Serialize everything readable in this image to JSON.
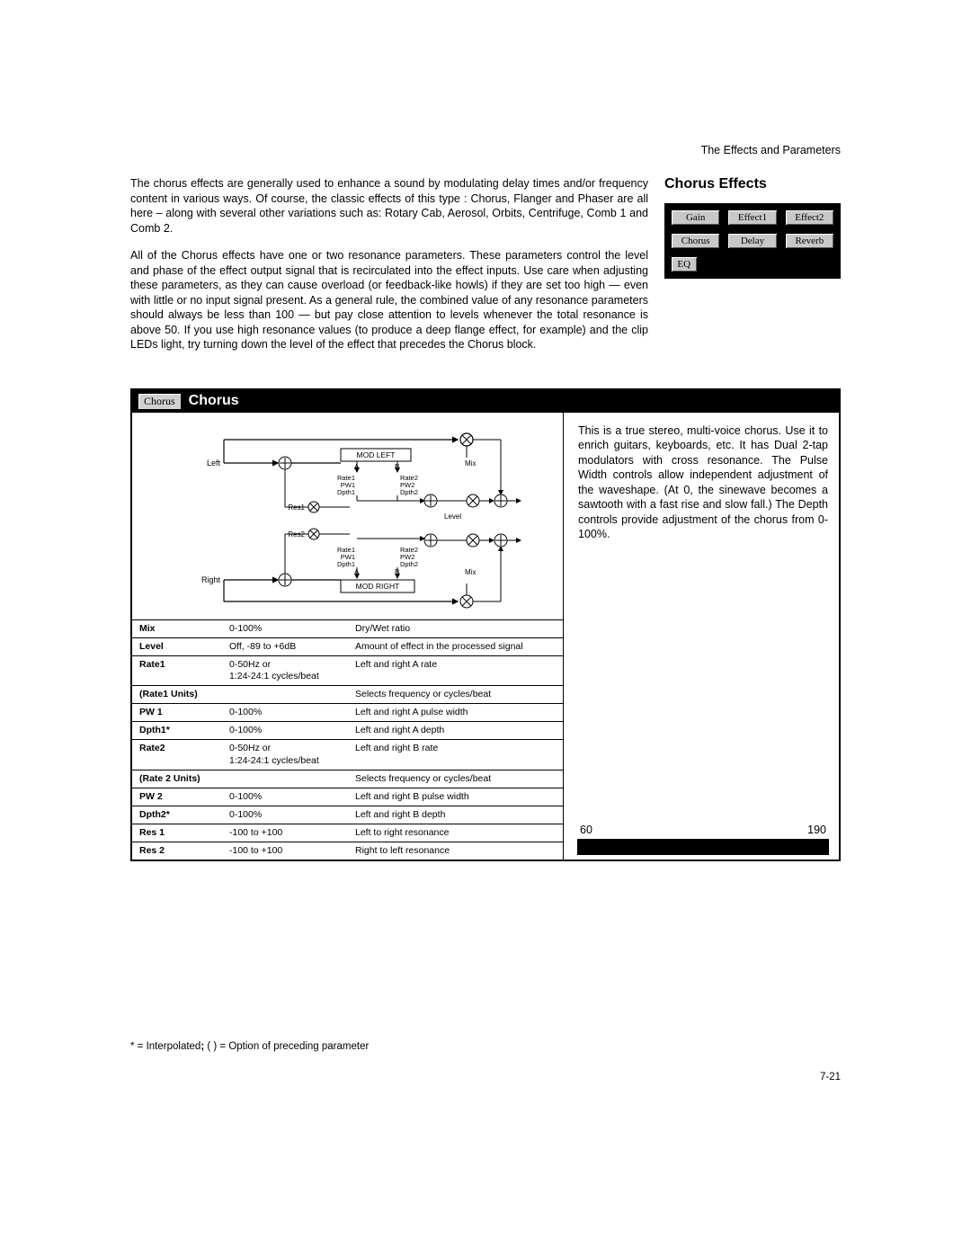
{
  "header": "The Effects and Parameters",
  "intro": {
    "p1": "The chorus effects are generally used to enhance a sound by modulating delay times and/or frequency content in various ways. Of course, the classic effects of this type : Chorus, Flanger and  Phaser are all here – along with several other variations such as: Rotary Cab, Aerosol, Orbits, Centrifuge, Comb 1 and Comb 2.",
    "p2": "All of the Chorus effects have one or two resonance parameters. These parameters control the level and phase of the effect output signal that is recirculated into the effect inputs. Use care when adjusting these parameters, as they can cause overload (or feedback-like howls) if they are set too high — even with little or no input signal present. As a general rule, the combined value of any resonance parameters should always be less than 100 — but pay close attention to levels whenever the total resonance is above 50. If you use high resonance values (to produce a deep flange effect, for example) and the clip LEDs light, try turning down the level of the effect that precedes the Chorus block."
  },
  "side": {
    "title": "Chorus Effects",
    "buttons": [
      "Gain",
      "Effect1",
      "Effect2",
      "Chorus",
      "Delay",
      "Reverb",
      "EQ"
    ]
  },
  "chorus": {
    "tag": "Chorus",
    "title": "Chorus",
    "description": "This is a true stereo, multi-voice chorus. Use it to enrich guitars, keyboards, etc. It has Dual 2-tap modulators with cross resonance. The Pulse Width controls allow independent adjustment of the waveshape. (At 0, the sinewave becomes a sawtooth with a fast rise and slow fall.) The Depth controls provide adjustment of the chorus from 0-100%.",
    "stat_left": "60",
    "stat_right": "190",
    "diagram": {
      "left_label": "Left",
      "right_label": "Right",
      "mod_left": "MOD LEFT",
      "mod_right": "MOD RIGHT",
      "a": "A",
      "b": "B",
      "mix": "Mix",
      "rate1": "Rate1",
      "pw1": "PW1",
      "dpth1": "Dpth1",
      "rate2": "Rate2",
      "pw2": "PW2",
      "dpth2": "Dpth2",
      "res1": "Res1",
      "res2": "Res2",
      "level": "Level"
    },
    "params": [
      {
        "name": "Mix",
        "range": "0-100%",
        "desc": "Dry/Wet ratio"
      },
      {
        "name": "Level",
        "range": "Off, -89 to +6dB",
        "desc": "Amount of effect in the processed signal"
      },
      {
        "name": "Rate1",
        "range": "0-50Hz or\n1:24-24:1 cycles/beat",
        "desc": "Left and right A rate"
      },
      {
        "name": "(Rate1 Units)",
        "range": "",
        "desc": "Selects frequency or cycles/beat"
      },
      {
        "name": "PW 1",
        "range": "0-100%",
        "desc": "Left and right A pulse width"
      },
      {
        "name": "Dpth1*",
        "range": "0-100%",
        "desc": "Left and right A depth"
      },
      {
        "name": "Rate2",
        "range": "0-50Hz or\n1:24-24:1 cycles/beat",
        "desc": "Left and right B rate"
      },
      {
        "name": "(Rate 2 Units)",
        "range": "",
        "desc": "Selects frequency or cycles/beat"
      },
      {
        "name": "PW 2",
        "range": "0-100%",
        "desc": "Left and right B pulse width"
      },
      {
        "name": "Dpth2*",
        "range": "0-100%",
        "desc": "Left and right B depth"
      },
      {
        "name": "Res 1",
        "range": "-100 to +100",
        "desc": "Left to right resonance"
      },
      {
        "name": "Res 2",
        "range": "-100 to +100",
        "desc": "Right to left resonance"
      }
    ]
  },
  "footnote": "* = Interpolated; ( ) = Option of preceding parameter",
  "page_num": "7-21"
}
